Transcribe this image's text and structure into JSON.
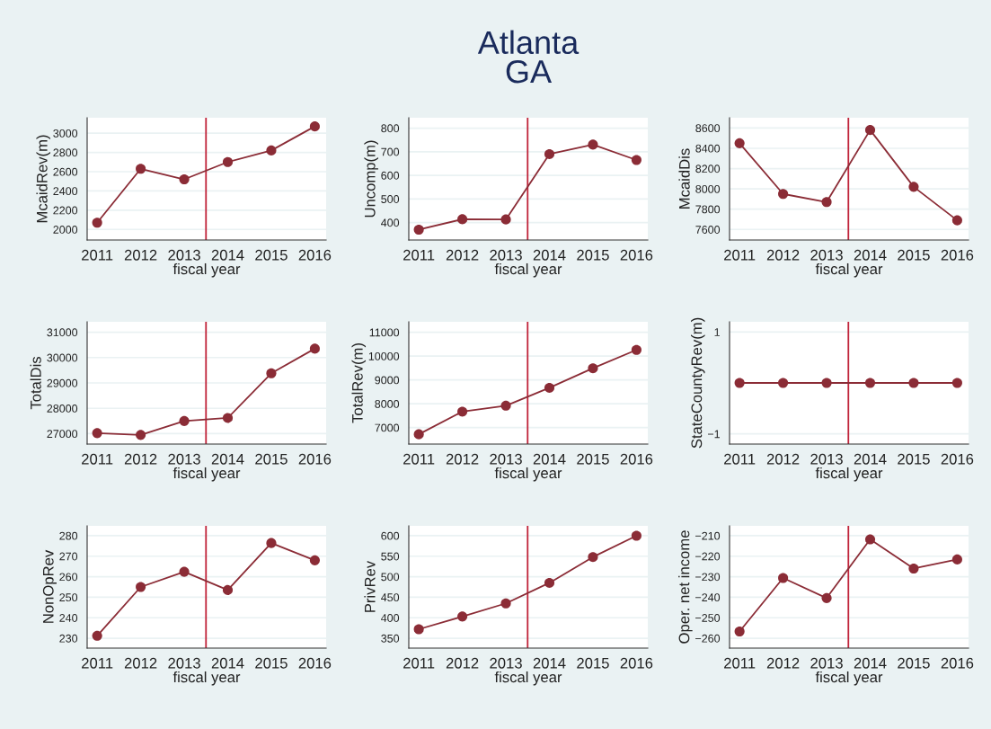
{
  "chart_data": [
    {
      "type": "line",
      "xlabel": "fiscal year",
      "ylabel": "McaidRev(m)",
      "x": [
        2011,
        2012,
        2013,
        2014,
        2015,
        2016
      ],
      "series": [
        {
          "color": "#8b2c36",
          "values": [
            2070,
            2630,
            2520,
            2700,
            2820,
            3070
          ]
        }
      ],
      "xlim": [
        2010.77,
        2016.26
      ],
      "xticks": [
        2011,
        2012,
        2013,
        2014,
        2015,
        2016
      ],
      "ylim": [
        1890,
        3160
      ],
      "yticks": [
        2000,
        2200,
        2400,
        2600,
        2800,
        3000
      ],
      "ref_lines": [
        {
          "axis": "x",
          "value": 2013.5,
          "color": "#c0243a"
        }
      ],
      "marker": "circle",
      "grid": "y"
    },
    {
      "type": "line",
      "title": "Atlanta\nGA",
      "xlabel": "fiscal year",
      "ylabel": "Uncomp(m)",
      "x": [
        2011,
        2012,
        2013,
        2014,
        2015,
        2016
      ],
      "series": [
        {
          "color": "#8b2c36",
          "values": [
            370,
            414,
            413,
            690,
            730,
            665
          ]
        }
      ],
      "xlim": [
        2010.77,
        2016.26
      ],
      "xticks": [
        2011,
        2012,
        2013,
        2014,
        2015,
        2016
      ],
      "ylim": [
        326,
        844
      ],
      "yticks": [
        400,
        500,
        600,
        700,
        800
      ],
      "ref_lines": [
        {
          "axis": "x",
          "value": 2013.5,
          "color": "#c0243a"
        }
      ],
      "marker": "circle",
      "grid": "y"
    },
    {
      "type": "line",
      "xlabel": "fiscal year",
      "ylabel": "McaidDis",
      "x": [
        2011,
        2012,
        2013,
        2014,
        2015,
        2016
      ],
      "series": [
        {
          "color": "#8b2c36",
          "values": [
            8450,
            7950,
            7870,
            8580,
            8020,
            7690
          ]
        }
      ],
      "xlim": [
        2010.77,
        2016.26
      ],
      "xticks": [
        2011,
        2012,
        2013,
        2014,
        2015,
        2016
      ],
      "ylim": [
        7496,
        8701
      ],
      "yticks": [
        7600,
        7800,
        8000,
        8200,
        8400,
        8600
      ],
      "ref_lines": [
        {
          "axis": "x",
          "value": 2013.5,
          "color": "#c0243a"
        }
      ],
      "marker": "circle",
      "grid": "y"
    },
    {
      "type": "line",
      "xlabel": "fiscal year",
      "ylabel": "TotalDis",
      "x": [
        2011,
        2012,
        2013,
        2014,
        2015,
        2016
      ],
      "series": [
        {
          "color": "#8b2c36",
          "values": [
            27020,
            26950,
            27500,
            27620,
            29380,
            30350
          ]
        }
      ],
      "xlim": [
        2010.77,
        2016.26
      ],
      "xticks": [
        2011,
        2012,
        2013,
        2014,
        2015,
        2016
      ],
      "ylim": [
        26590,
        31410
      ],
      "yticks": [
        27000,
        28000,
        29000,
        30000,
        31000
      ],
      "ref_lines": [
        {
          "axis": "x",
          "value": 2013.5,
          "color": "#c0243a"
        }
      ],
      "marker": "circle",
      "grid": "y"
    },
    {
      "type": "line",
      "xlabel": "fiscal year",
      "ylabel": "TotalRev(m)",
      "x": [
        2011,
        2012,
        2013,
        2014,
        2015,
        2016
      ],
      "series": [
        {
          "color": "#8b2c36",
          "values": [
            6720,
            7670,
            7920,
            8670,
            9490,
            10260
          ]
        }
      ],
      "xlim": [
        2010.77,
        2016.26
      ],
      "xticks": [
        2011,
        2012,
        2013,
        2014,
        2015,
        2016
      ],
      "ylim": [
        6310,
        11440
      ],
      "yticks": [
        7000,
        8000,
        9000,
        10000,
        11000
      ],
      "ref_lines": [
        {
          "axis": "x",
          "value": 2013.5,
          "color": "#c0243a"
        }
      ],
      "marker": "circle",
      "grid": "y"
    },
    {
      "type": "line",
      "xlabel": "fiscal year",
      "ylabel": "StateCountyRev(m)",
      "x": [
        2011,
        2012,
        2013,
        2014,
        2015,
        2016
      ],
      "series": [
        {
          "color": "#8b2c36",
          "values": [
            0,
            0,
            0,
            0,
            0,
            0
          ]
        }
      ],
      "xlim": [
        2010.77,
        2016.26
      ],
      "xticks": [
        2011,
        2012,
        2013,
        2014,
        2015,
        2016
      ],
      "ylim": [
        -1.2,
        1.2
      ],
      "yticks": [
        {
          "value": -1,
          "label": "−1"
        },
        1
      ],
      "ref_lines": [
        {
          "axis": "x",
          "value": 2013.5,
          "color": "#c0243a"
        }
      ],
      "marker": "circle",
      "grid": "y"
    },
    {
      "type": "line",
      "xlabel": "fiscal year",
      "ylabel": "NonOpRev",
      "x": [
        2011,
        2012,
        2013,
        2014,
        2015,
        2016
      ],
      "series": [
        {
          "color": "#8b2c36",
          "values": [
            231.2,
            255,
            262.4,
            253.5,
            276.4,
            268
          ]
        }
      ],
      "xlim": [
        2010.77,
        2016.26
      ],
      "xticks": [
        2011,
        2012,
        2013,
        2014,
        2015,
        2016
      ],
      "ylim": [
        225.2,
        284.8
      ],
      "yticks": [
        230,
        240,
        250,
        260,
        270,
        280
      ],
      "ref_lines": [
        {
          "axis": "x",
          "value": 2013.5,
          "color": "#c0243a"
        }
      ],
      "marker": "circle",
      "grid": "y"
    },
    {
      "type": "line",
      "xlabel": "fiscal year",
      "ylabel": "PrivRev",
      "x": [
        2011,
        2012,
        2013,
        2014,
        2015,
        2016
      ],
      "series": [
        {
          "color": "#8b2c36",
          "values": [
            372,
            403,
            435,
            485,
            548,
            600
          ]
        }
      ],
      "xlim": [
        2010.77,
        2016.26
      ],
      "xticks": [
        2011,
        2012,
        2013,
        2014,
        2015,
        2016
      ],
      "ylim": [
        326,
        624
      ],
      "yticks": [
        350,
        400,
        450,
        500,
        550,
        600
      ],
      "ref_lines": [
        {
          "axis": "x",
          "value": 2013.5,
          "color": "#c0243a"
        }
      ],
      "marker": "circle",
      "grid": "y"
    },
    {
      "type": "line",
      "xlabel": "fiscal year",
      "ylabel": "Oper. net income",
      "x": [
        2011,
        2012,
        2013,
        2014,
        2015,
        2016
      ],
      "series": [
        {
          "color": "#8b2c36",
          "values": [
            -256.7,
            -230.6,
            -240.4,
            -211.8,
            -226,
            -221.6
          ]
        }
      ],
      "xlim": [
        2010.77,
        2016.26
      ],
      "xticks": [
        2011,
        2012,
        2013,
        2014,
        2015,
        2016
      ],
      "ylim": [
        -264.8,
        -205.2
      ],
      "yticks": [
        {
          "value": -260,
          "label": "−260"
        },
        {
          "value": -250,
          "label": "−250"
        },
        {
          "value": -240,
          "label": "−240"
        },
        {
          "value": -230,
          "label": "−230"
        },
        {
          "value": -220,
          "label": "−220"
        },
        {
          "value": -210,
          "label": "−210"
        }
      ],
      "ref_lines": [
        {
          "axis": "x",
          "value": 2013.5,
          "color": "#c0243a"
        }
      ],
      "marker": "circle",
      "grid": "y"
    }
  ]
}
